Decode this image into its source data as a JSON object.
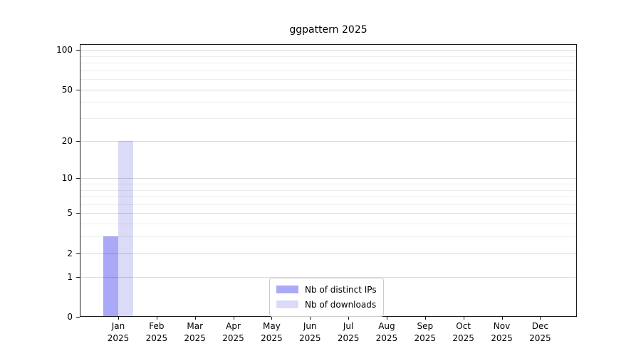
{
  "title": "ggpattern 2025",
  "chart_data": {
    "type": "bar",
    "title": "ggpattern 2025",
    "categories": [
      "Jan 2025",
      "Feb 2025",
      "Mar 2025",
      "Apr 2025",
      "May 2025",
      "Jun 2025",
      "Jul 2025",
      "Aug 2025",
      "Sep 2025",
      "Oct 2025",
      "Nov 2025",
      "Dec 2025"
    ],
    "x_tick_line1": [
      "Jan",
      "Feb",
      "Mar",
      "Apr",
      "May",
      "Jun",
      "Jul",
      "Aug",
      "Sep",
      "Oct",
      "Nov",
      "Dec"
    ],
    "x_tick_line2": "2025",
    "series": [
      {
        "name": "Nb of distinct IPs",
        "color": "#a9a9f7",
        "values": [
          3,
          0,
          0,
          0,
          0,
          0,
          0,
          0,
          0,
          0,
          0,
          0
        ]
      },
      {
        "name": "Nb of downloads",
        "color": "#dbdbf8",
        "values": [
          20,
          0,
          0,
          0,
          0,
          0,
          0,
          0,
          0,
          0,
          0,
          0
        ]
      }
    ],
    "y_scale": "log1p",
    "y_ticks": [
      0,
      1,
      2,
      5,
      10,
      20,
      50,
      100
    ],
    "y_minor_gridlines": [
      3,
      4,
      6,
      7,
      8,
      9,
      30,
      40,
      60,
      70,
      80,
      90
    ],
    "ylim": [
      0,
      111
    ],
    "xlabel": "",
    "ylabel": "",
    "grid": "horizontal",
    "legend_position": "lower center"
  }
}
